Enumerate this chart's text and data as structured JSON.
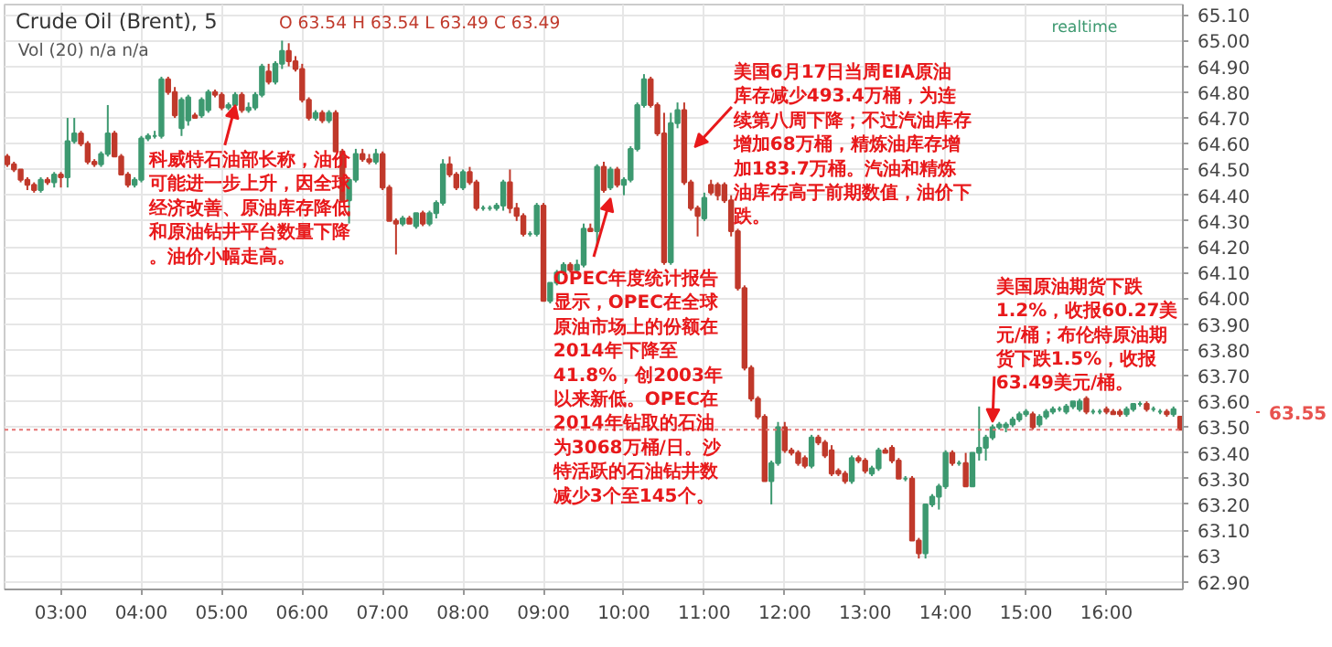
{
  "chart_data": {
    "type": "candlestick",
    "title": "Crude Oil (Brent), 5",
    "subtitle": "O 63.54 H 63.54 L 63.49 C 63.49",
    "x": [
      2.3333,
      2.4167,
      2.5,
      2.5833,
      2.6667,
      2.75,
      2.8333,
      2.9167,
      3,
      3.0833,
      3.1667,
      3.25,
      3.3333,
      3.4167,
      3.5,
      3.5833,
      3.6667,
      3.75,
      3.8333,
      3.9167,
      4,
      4.0833,
      4.1667,
      4.25,
      4.3333,
      4.4167,
      4.5,
      4.5833,
      4.6667,
      4.75,
      4.8333,
      4.9167,
      5,
      5.0833,
      5.1667,
      5.25,
      5.3333,
      5.4167,
      5.5,
      5.5833,
      5.6667,
      5.75,
      5.8333,
      5.9167,
      6,
      6.0833,
      6.1667,
      6.25,
      6.3333,
      6.4167,
      6.5,
      6.5833,
      6.6667,
      6.75,
      6.8333,
      6.9167,
      7,
      7.0833,
      7.1667,
      7.25,
      7.3333,
      7.4167,
      7.5,
      7.5833,
      7.6667,
      7.75,
      7.8333,
      7.9167,
      8,
      8.0833,
      8.1667,
      8.25,
      8.3333,
      8.4167,
      8.5,
      8.5833,
      8.6667,
      8.75,
      8.8333,
      8.9167,
      9,
      9.0833,
      9.1667,
      9.25,
      9.3333,
      9.4167,
      9.5,
      9.5833,
      9.6667,
      9.75,
      9.8333,
      9.9167,
      10,
      10.0833,
      10.1667,
      10.25,
      10.3333,
      10.4167,
      10.5,
      10.5833,
      10.6667,
      10.75,
      10.8333,
      10.9167,
      11,
      11.0833,
      11.1667,
      11.25,
      11.3333,
      11.4167,
      11.5,
      11.5833,
      11.6667,
      11.75,
      11.8333,
      11.9167,
      12,
      12.0833,
      12.1667,
      12.25,
      12.3333,
      12.4167,
      12.5,
      12.5833,
      12.6667,
      12.75,
      12.8333,
      12.9167,
      13,
      13.0833,
      13.1667,
      13.25,
      13.3333,
      13.4167,
      13.5,
      13.5833,
      13.6667,
      13.75,
      13.8333,
      13.9167,
      14,
      14.0833,
      14.1667,
      14.25,
      14.3333,
      14.4167,
      14.5,
      14.5833,
      14.6667,
      14.75,
      14.8333,
      14.9167,
      15,
      15.0833,
      15.1667,
      15.25,
      15.3333,
      15.4167,
      15.5,
      15.5833,
      15.6667,
      15.75,
      15.8333,
      15.9167,
      16,
      16.0833,
      16.1667,
      16.25,
      16.3333,
      16.4167,
      16.5,
      16.5833,
      16.6667,
      16.75,
      16.8333,
      16.9167
    ],
    "ohlc": [
      [
        64.55,
        64.56,
        64.51,
        64.52
      ],
      [
        64.52,
        64.53,
        64.49,
        64.5
      ],
      [
        64.5,
        64.5,
        64.45,
        64.46
      ],
      [
        64.46,
        64.47,
        64.42,
        64.44
      ],
      [
        64.44,
        64.45,
        64.41,
        64.42
      ],
      [
        64.42,
        64.47,
        64.41,
        64.46
      ],
      [
        64.46,
        64.47,
        64.44,
        64.45
      ],
      [
        64.45,
        64.49,
        64.43,
        64.48
      ],
      [
        64.48,
        64.49,
        64.43,
        64.47
      ],
      [
        64.47,
        64.7,
        64.43,
        64.61
      ],
      [
        64.61,
        64.7,
        64.6,
        64.64
      ],
      [
        64.64,
        64.65,
        64.59,
        64.6
      ],
      [
        64.6,
        64.61,
        64.52,
        64.53
      ],
      [
        64.53,
        64.54,
        64.51,
        64.52
      ],
      [
        64.52,
        64.57,
        64.51,
        64.56
      ],
      [
        64.56,
        64.75,
        64.55,
        64.64
      ],
      [
        64.64,
        64.65,
        64.55,
        64.55
      ],
      [
        64.55,
        64.56,
        64.48,
        64.48
      ],
      [
        64.48,
        64.49,
        64.43,
        64.44
      ],
      [
        64.44,
        64.47,
        64.43,
        64.46
      ],
      [
        64.46,
        64.63,
        64.45,
        64.62
      ],
      [
        64.62,
        64.64,
        64.61,
        64.63
      ],
      [
        64.63,
        64.65,
        64.62,
        64.63
      ],
      [
        64.63,
        64.86,
        64.62,
        64.85
      ],
      [
        64.85,
        64.86,
        64.79,
        64.8
      ],
      [
        64.8,
        64.82,
        64.7,
        64.71
      ],
      [
        64.66,
        64.78,
        64.63,
        64.77
      ],
      [
        64.69,
        64.79,
        64.67,
        64.78
      ],
      [
        64.71,
        64.72,
        64.7,
        64.7
      ],
      [
        64.71,
        64.78,
        64.7,
        64.77
      ],
      [
        64.73,
        64.81,
        64.72,
        64.8
      ],
      [
        64.8,
        64.81,
        64.78,
        64.79
      ],
      [
        64.79,
        64.8,
        64.73,
        64.74
      ],
      [
        64.74,
        64.76,
        64.73,
        64.75
      ],
      [
        64.75,
        64.8,
        64.74,
        64.79
      ],
      [
        64.79,
        64.8,
        64.72,
        64.73
      ],
      [
        64.73,
        64.76,
        64.72,
        64.74
      ],
      [
        64.74,
        64.8,
        64.73,
        64.79
      ],
      [
        64.79,
        64.91,
        64.78,
        64.9
      ],
      [
        64.88,
        64.91,
        64.83,
        64.84
      ],
      [
        64.84,
        64.92,
        64.83,
        64.91
      ],
      [
        64.91,
        65.0,
        64.89,
        64.96
      ],
      [
        64.96,
        64.99,
        64.9,
        64.92
      ],
      [
        64.92,
        64.94,
        64.88,
        64.89
      ],
      [
        64.89,
        64.91,
        64.76,
        64.77
      ],
      [
        64.77,
        64.78,
        64.69,
        64.7
      ],
      [
        64.7,
        64.73,
        64.69,
        64.72
      ],
      [
        64.72,
        64.73,
        64.68,
        64.69
      ],
      [
        64.69,
        64.73,
        64.68,
        64.72
      ],
      [
        64.72,
        64.73,
        64.57,
        64.57
      ],
      [
        64.57,
        64.58,
        64.38,
        64.38
      ],
      [
        64.38,
        64.46,
        64.29,
        64.46
      ],
      [
        64.46,
        64.58,
        64.45,
        64.56
      ],
      [
        64.56,
        64.58,
        64.53,
        64.54
      ],
      [
        64.54,
        64.56,
        64.52,
        64.53
      ],
      [
        64.53,
        64.58,
        64.52,
        64.56
      ],
      [
        64.56,
        64.57,
        64.42,
        64.43
      ],
      [
        64.43,
        64.44,
        64.3,
        64.3
      ],
      [
        64.3,
        64.31,
        64.17,
        64.29
      ],
      [
        64.29,
        64.32,
        64.28,
        64.31
      ],
      [
        64.31,
        64.32,
        64.29,
        64.29
      ],
      [
        64.28,
        64.33,
        64.27,
        64.33
      ],
      [
        64.33,
        64.34,
        64.28,
        64.29
      ],
      [
        64.29,
        64.34,
        64.28,
        64.33
      ],
      [
        64.33,
        64.38,
        64.31,
        64.37
      ],
      [
        64.37,
        64.54,
        64.36,
        64.52
      ],
      [
        64.52,
        64.55,
        64.47,
        64.48
      ],
      [
        64.48,
        64.49,
        64.42,
        64.43
      ],
      [
        64.43,
        64.5,
        64.42,
        64.49
      ],
      [
        64.49,
        64.51,
        64.44,
        64.45
      ],
      [
        64.45,
        64.46,
        64.34,
        64.35
      ],
      [
        64.35,
        64.36,
        64.34,
        64.35
      ],
      [
        64.35,
        64.36,
        64.34,
        64.35
      ],
      [
        64.35,
        64.37,
        64.34,
        64.36
      ],
      [
        64.36,
        64.46,
        64.34,
        64.45
      ],
      [
        64.45,
        64.5,
        64.33,
        64.35
      ],
      [
        64.35,
        64.37,
        64.3,
        64.32
      ],
      [
        64.32,
        64.33,
        64.24,
        64.25
      ],
      [
        64.25,
        64.26,
        64.24,
        64.25
      ],
      [
        64.25,
        64.37,
        64.24,
        64.36
      ],
      [
        64.36,
        64.37,
        63.99,
        63.99
      ],
      [
        63.99,
        64.06,
        63.98,
        64.06
      ],
      [
        64.06,
        64.11,
        64.05,
        64.1
      ],
      [
        64.1,
        64.14,
        64.09,
        64.13
      ],
      [
        64.13,
        64.14,
        64.1,
        64.11
      ],
      [
        64.11,
        64.15,
        64.1,
        64.13
      ],
      [
        64.13,
        64.29,
        64.12,
        64.27
      ],
      [
        64.27,
        64.29,
        64.26,
        64.26
      ],
      [
        64.26,
        64.52,
        64.2,
        64.51
      ],
      [
        64.51,
        64.53,
        64.41,
        64.42
      ],
      [
        64.43,
        64.51,
        64.42,
        64.5
      ],
      [
        64.5,
        64.51,
        64.43,
        64.44
      ],
      [
        64.44,
        64.47,
        64.4,
        64.46
      ],
      [
        64.46,
        64.59,
        64.45,
        64.58
      ],
      [
        64.58,
        64.76,
        64.57,
        64.75
      ],
      [
        64.75,
        64.87,
        64.74,
        64.85
      ],
      [
        64.85,
        64.86,
        64.74,
        64.75
      ],
      [
        64.75,
        64.76,
        64.63,
        64.64
      ],
      [
        64.64,
        64.72,
        64.13,
        64.14
      ],
      [
        64.14,
        64.72,
        64.13,
        64.68
      ],
      [
        64.68,
        64.76,
        64.66,
        64.73
      ],
      [
        64.73,
        64.76,
        64.44,
        64.45
      ],
      [
        64.45,
        64.46,
        64.34,
        64.35
      ],
      [
        64.35,
        64.36,
        64.24,
        64.32
      ],
      [
        64.31,
        64.41,
        64.3,
        64.39
      ],
      [
        64.44,
        64.46,
        64.4,
        64.41
      ],
      [
        64.44,
        64.45,
        64.38,
        64.4
      ],
      [
        64.44,
        64.45,
        64.37,
        64.38
      ],
      [
        64.38,
        64.4,
        64.24,
        64.26
      ],
      [
        64.26,
        64.27,
        64.03,
        64.04
      ],
      [
        64.04,
        64.05,
        63.72,
        63.73
      ],
      [
        63.73,
        63.74,
        63.6,
        63.61
      ],
      [
        63.61,
        63.62,
        63.53,
        63.54
      ],
      [
        63.54,
        63.55,
        63.29,
        63.29
      ],
      [
        63.29,
        63.37,
        63.2,
        63.36
      ],
      [
        63.36,
        63.52,
        63.35,
        63.5
      ],
      [
        63.5,
        63.52,
        63.4,
        63.41
      ],
      [
        63.41,
        63.42,
        63.39,
        63.4
      ],
      [
        63.4,
        63.41,
        63.35,
        63.36
      ],
      [
        63.38,
        63.39,
        63.34,
        63.35
      ],
      [
        63.35,
        63.47,
        63.34,
        63.46
      ],
      [
        63.46,
        63.47,
        63.43,
        63.44
      ],
      [
        63.44,
        63.45,
        63.38,
        63.39
      ],
      [
        63.41,
        63.43,
        63.31,
        63.32
      ],
      [
        63.33,
        63.34,
        63.31,
        63.32
      ],
      [
        63.32,
        63.33,
        63.28,
        63.29
      ],
      [
        63.29,
        63.39,
        63.28,
        63.38
      ],
      [
        63.38,
        63.39,
        63.36,
        63.37
      ],
      [
        63.37,
        63.38,
        63.32,
        63.33
      ],
      [
        63.32,
        63.35,
        63.31,
        63.34
      ],
      [
        63.34,
        63.42,
        63.33,
        63.41
      ],
      [
        63.41,
        63.42,
        63.4,
        63.4
      ],
      [
        63.42,
        63.43,
        63.36,
        63.37
      ],
      [
        63.37,
        63.38,
        63.3,
        63.3
      ],
      [
        63.3,
        63.31,
        63.29,
        63.3
      ],
      [
        63.3,
        63.31,
        63.06,
        63.06
      ],
      [
        63.06,
        63.07,
        62.99,
        63.01
      ],
      [
        63.01,
        63.2,
        62.99,
        63.2
      ],
      [
        63.2,
        63.24,
        63.19,
        63.23
      ],
      [
        63.23,
        63.28,
        63.18,
        63.27
      ],
      [
        63.27,
        63.41,
        63.26,
        63.4
      ],
      [
        63.4,
        63.41,
        63.35,
        63.36
      ],
      [
        63.36,
        63.37,
        63.35,
        63.36
      ],
      [
        63.36,
        63.4,
        63.27,
        63.27
      ],
      [
        63.27,
        63.4,
        63.27,
        63.4
      ],
      [
        63.4,
        63.58,
        63.37,
        63.42
      ],
      [
        63.42,
        63.47,
        63.37,
        63.46
      ],
      [
        63.46,
        63.51,
        63.45,
        63.5
      ],
      [
        63.5,
        63.52,
        63.49,
        63.51
      ],
      [
        63.5,
        63.52,
        63.48,
        63.51
      ],
      [
        63.51,
        63.54,
        63.5,
        63.53
      ],
      [
        63.53,
        63.56,
        63.52,
        63.55
      ],
      [
        63.55,
        63.57,
        63.54,
        63.56
      ],
      [
        63.55,
        63.56,
        63.49,
        63.5
      ],
      [
        63.51,
        63.55,
        63.5,
        63.54
      ],
      [
        63.54,
        63.57,
        63.53,
        63.56
      ],
      [
        63.56,
        63.58,
        63.55,
        63.57
      ],
      [
        63.57,
        63.58,
        63.56,
        63.57
      ],
      [
        63.56,
        63.59,
        63.55,
        63.58
      ],
      [
        63.58,
        63.6,
        63.57,
        63.6
      ],
      [
        63.57,
        63.61,
        63.56,
        63.6
      ],
      [
        63.61,
        63.62,
        63.55,
        63.56
      ],
      [
        63.56,
        63.57,
        63.55,
        63.56
      ],
      [
        63.56,
        63.57,
        63.55,
        63.56
      ],
      [
        63.57,
        63.58,
        63.55,
        63.56
      ],
      [
        63.56,
        63.57,
        63.55,
        63.55
      ],
      [
        63.56,
        63.57,
        63.54,
        63.55
      ],
      [
        63.55,
        63.58,
        63.54,
        63.57
      ],
      [
        63.57,
        63.59,
        63.56,
        63.59
      ],
      [
        63.59,
        63.6,
        63.58,
        63.59
      ],
      [
        63.59,
        63.6,
        63.56,
        63.57
      ],
      [
        63.57,
        63.58,
        63.56,
        63.57
      ],
      [
        63.56,
        63.57,
        63.55,
        63.56
      ],
      [
        63.56,
        63.57,
        63.54,
        63.55
      ],
      [
        63.55,
        63.58,
        63.54,
        63.57
      ],
      [
        63.54,
        63.54,
        63.49,
        63.49
      ]
    ],
    "xlim": [
      2.3,
      16.95
    ],
    "ylim": [
      62.87,
      65.14
    ],
    "xticks": [
      {
        "value": 3,
        "label": "03:00"
      },
      {
        "value": 4,
        "label": "04:00"
      },
      {
        "value": 5,
        "label": "05:00"
      },
      {
        "value": 6,
        "label": "06:00"
      },
      {
        "value": 7,
        "label": "07:00"
      },
      {
        "value": 8,
        "label": "08:00"
      },
      {
        "value": 9,
        "label": "09:00"
      },
      {
        "value": 10,
        "label": "10:00"
      },
      {
        "value": 11,
        "label": "11:00"
      },
      {
        "value": 12,
        "label": "12:00"
      },
      {
        "value": 13,
        "label": "13:00"
      },
      {
        "value": 14,
        "label": "14:00"
      },
      {
        "value": 15,
        "label": "15:00"
      },
      {
        "value": 16,
        "label": "16:00"
      }
    ],
    "yticks": [
      {
        "value": 62.9,
        "label": "62.90"
      },
      63,
      {
        "value": 63.1,
        "label": "63.10"
      },
      {
        "value": 63.2,
        "label": "63.20"
      },
      {
        "value": 63.3,
        "label": "63.30"
      },
      {
        "value": 63.4,
        "label": "63.40"
      },
      {
        "value": 63.5,
        "label": "63.50"
      },
      {
        "value": 63.6,
        "label": "63.60"
      },
      {
        "value": 63.7,
        "label": "63.70"
      },
      {
        "value": 63.8,
        "label": "63.80"
      },
      {
        "value": 63.9,
        "label": "63.90"
      },
      {
        "value": 64,
        "label": "64.00"
      },
      {
        "value": 64.1,
        "label": "64.10"
      },
      {
        "value": 64.2,
        "label": "64.20"
      },
      {
        "value": 64.3,
        "label": "64.30"
      },
      {
        "value": 64.4,
        "label": "64.40"
      },
      {
        "value": 64.5,
        "label": "64.50"
      },
      {
        "value": 64.6,
        "label": "64.60"
      },
      {
        "value": 64.7,
        "label": "64.70"
      },
      {
        "value": 64.8,
        "label": "64.80"
      },
      {
        "value": 64.9,
        "label": "64.90"
      },
      {
        "value": 65,
        "label": "65.00"
      },
      {
        "value": 65.1,
        "label": "65.10"
      }
    ],
    "grid": true,
    "ref_lines": [
      {
        "axis": "y",
        "value": 63.49,
        "color": "#e57373",
        "line_style": "dotted"
      }
    ],
    "annotations": [
      {
        "text": "科威特石油部长称，油价可能进一步上升，因全球经济改善、原油库存降低和原油钻井平台数量下降。油价小幅走高。",
        "x": 5.17,
        "y": 64.75
      },
      "OPEC年度统计报告显示，OPEC在全球原油市场上的份额在2014年下降至41.8%，创2003年以来新低。OPEC在2014年钻取的石油为3068万桶/日。沙特活跃的石油钻井数减少3个至145个。",
      "美国6月17日当周EIA原油库存减少493.4万桶，为连续第八周下降；不过汽油库存增加68万桶，精炼油库存增加183.7万桶。汽油和精炼油库存高于前期数值，油价下跌。",
      {
        "text": "美国原油期货下跌1.2%，收报60.27美元/桶；布伦特原油期货下跌1.5%，收报63.49美元/桶。",
        "x": 14.5833,
        "y": 63.52
      },
      "63.55",
      "Vol (20)  n/a  n/a",
      "realtime"
    ]
  }
}
